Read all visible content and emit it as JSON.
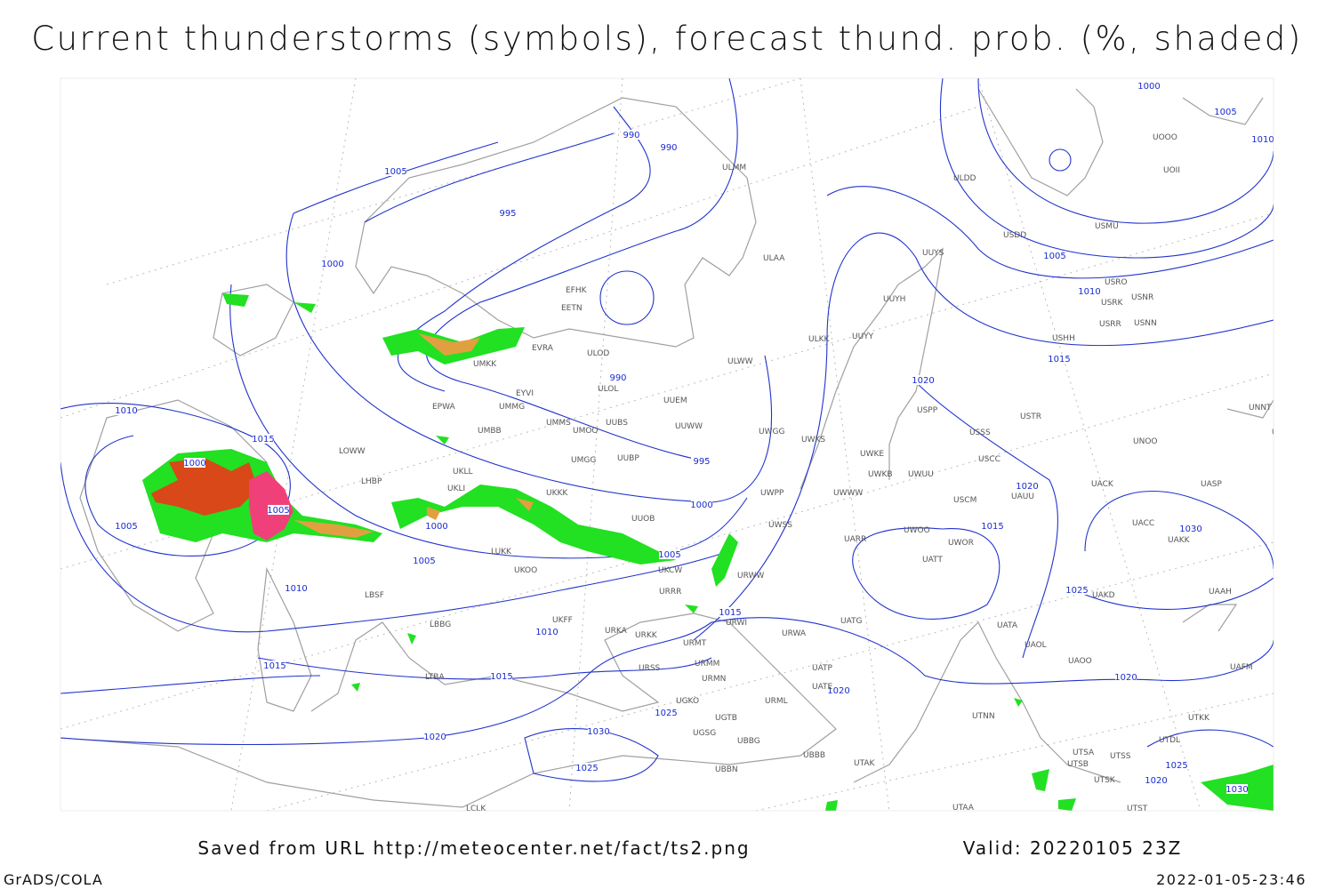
{
  "title": "Current thunderstorms (symbols), forecast thund. prob. (%, shaded)",
  "footer": {
    "saved": "Saved from URL http://meteocenter.net/fact/ts2.png",
    "valid": "Valid: 20220105 23Z",
    "left": "GrADS/COLA",
    "right": "2022-01-05-23:46"
  },
  "isobar_labels": [
    "1000",
    "1005",
    "1010",
    "990",
    "990",
    "1005",
    "995",
    "1000",
    "990",
    "995",
    "1000",
    "1005",
    "1015",
    "1010",
    "1005",
    "1015",
    "1020",
    "1020",
    "1015",
    "1030",
    "1025",
    "1020",
    "1020",
    "1010",
    "1015",
    "1000",
    "1005",
    "1005",
    "1000",
    "1005",
    "1010",
    "1010",
    "1015",
    "1015",
    "1020",
    "1030",
    "1025",
    "1025",
    "1025",
    "1020",
    "1030"
  ],
  "stations": [
    "ULMM",
    "ULDD",
    "USDD",
    "USMU",
    "UUYS",
    "ULAA",
    "USRO",
    "USRK",
    "USNR",
    "USRR",
    "USNN",
    "USHH",
    "UUYH",
    "UUYY",
    "ULKK",
    "ULWW",
    "ULOD",
    "ULOL",
    "UUEM",
    "UUWW",
    "UWGG",
    "UWKS",
    "UWKE",
    "UWKB",
    "UWUU",
    "UWWW",
    "UWPP",
    "UWSS",
    "EFHK",
    "EETN",
    "EYVI",
    "EPWA",
    "UMMG",
    "UMMS",
    "UMOO",
    "UUBS",
    "UMBB",
    "UMGG",
    "UUBP",
    "UKLL",
    "UKLI",
    "UKKK",
    "UUOB",
    "LUKK",
    "UKOO",
    "UKFF",
    "URKA",
    "URKK",
    "URMT",
    "URSS",
    "URMM",
    "URMN",
    "UGKO",
    "UGTB",
    "UGSG",
    "UBBG",
    "UBBN",
    "UBBB",
    "URML",
    "URWA",
    "UATG",
    "UATE",
    "UATP",
    "UTAK",
    "UTAA",
    "UTNN",
    "UAOL",
    "UATA",
    "UAOO",
    "UARR",
    "UATT",
    "UWOO",
    "UWOR",
    "USCC",
    "USSS",
    "USTR",
    "USPP",
    "USCM",
    "UAUU",
    "UACK",
    "UNOO",
    "UASP",
    "UACC",
    "UAKK",
    "UAAH",
    "UAKD",
    "UAFM",
    "UTDL",
    "UTKK",
    "UTSA",
    "UTSB",
    "UTSS",
    "UTSK",
    "UTST",
    "UNNT",
    "UNBB",
    "UOOO",
    "UOII",
    "LOWW",
    "LHBP",
    "LBSF",
    "LBBG",
    "LTBA",
    "LCLK",
    "EVRA",
    "UMKK",
    "UKCW",
    "URRR",
    "URWI",
    "URWW"
  ]
}
